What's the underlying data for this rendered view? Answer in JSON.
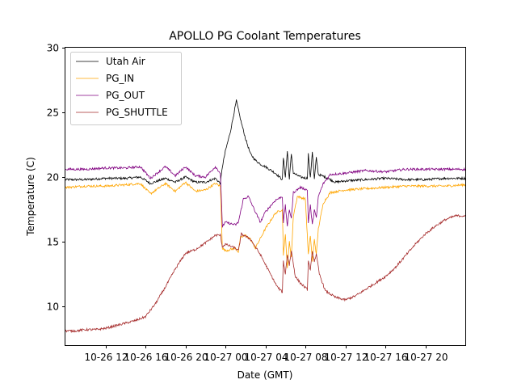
{
  "chart_data": {
    "type": "line",
    "title": "APOLLO PG Coolant Temperatures",
    "xlabel": "Date (GMT)",
    "ylabel": "Temperature (C)",
    "x_units": "hours since 10-26 08:00 GMT",
    "xlim": [
      0,
      40
    ],
    "ylim": [
      7,
      30
    ],
    "x_ticks": [
      {
        "value": 4,
        "label": "10-26 12"
      },
      {
        "value": 8,
        "label": "10-26 16"
      },
      {
        "value": 12,
        "label": "10-26 20"
      },
      {
        "value": 16,
        "label": "10-27 00"
      },
      {
        "value": 20,
        "label": "10-27 04"
      },
      {
        "value": 24,
        "label": "10-27 08"
      },
      {
        "value": 28,
        "label": "10-27 12"
      },
      {
        "value": 32,
        "label": "10-27 16"
      },
      {
        "value": 36,
        "label": "10-27 20"
      }
    ],
    "y_ticks": [
      {
        "value": 10,
        "label": "10"
      },
      {
        "value": 15,
        "label": "15"
      },
      {
        "value": 20,
        "label": "20"
      },
      {
        "value": 25,
        "label": "25"
      },
      {
        "value": 30,
        "label": "30"
      }
    ],
    "grid": false,
    "legend_position": "top-left",
    "series": [
      {
        "name": "Utah Air",
        "color": "#000000",
        "x": [
          0,
          2,
          4,
          6,
          7.5,
          8.5,
          10,
          11,
          12,
          13,
          14,
          15,
          15.5,
          15.7,
          16,
          16.5,
          17.1,
          17.5,
          18,
          18.5,
          19,
          19.5,
          20,
          21,
          21.7,
          21.8,
          22.0,
          22.2,
          22.4,
          22.6,
          22.8,
          23.5,
          24.2,
          24.3,
          24.5,
          24.7,
          24.9,
          25.1,
          25.3,
          26,
          27,
          28,
          30,
          32,
          34,
          36,
          38,
          40
        ],
        "y": [
          19.8,
          19.8,
          19.9,
          19.9,
          20.0,
          19.5,
          19.9,
          19.6,
          20.0,
          19.6,
          19.6,
          19.9,
          19.5,
          20.8,
          22.0,
          23.5,
          25.9,
          24.5,
          23.0,
          21.8,
          21.3,
          21.0,
          20.8,
          20.3,
          19.8,
          21.5,
          20.0,
          22.0,
          19.8,
          21.8,
          20.3,
          20.0,
          19.9,
          21.8,
          19.9,
          22.0,
          19.8,
          21.5,
          20.2,
          20.0,
          19.6,
          19.7,
          19.8,
          19.9,
          19.8,
          19.8,
          19.9,
          19.9
        ]
      },
      {
        "name": "PG_IN",
        "color": "#ffa500",
        "x": [
          0,
          2,
          4,
          6,
          7.5,
          8.5,
          10,
          11,
          12,
          13,
          14,
          15,
          15.5,
          15.7,
          16,
          17,
          17.3,
          17.5,
          18,
          18.5,
          19,
          20,
          21,
          21.7,
          21.8,
          22.0,
          22.2,
          22.4,
          22.6,
          22.8,
          23.2,
          24.0,
          24.3,
          24.5,
          24.7,
          24.9,
          25.1,
          25.3,
          25.8,
          26.5,
          28,
          30,
          32,
          34,
          36,
          38,
          40
        ],
        "y": [
          19.2,
          19.3,
          19.3,
          19.4,
          19.5,
          18.7,
          19.5,
          18.9,
          19.6,
          18.9,
          19.0,
          19.5,
          19.3,
          14.5,
          14.3,
          14.5,
          14.2,
          15.3,
          15.5,
          15.2,
          14.5,
          16.0,
          17.2,
          17.5,
          14.0,
          15.5,
          13.0,
          15.0,
          13.8,
          17.0,
          18.5,
          18.3,
          14.0,
          15.5,
          13.5,
          15.2,
          14.0,
          16.0,
          18.0,
          18.8,
          19.0,
          19.1,
          19.2,
          19.3,
          19.3,
          19.3,
          19.4
        ]
      },
      {
        "name": "PG_OUT",
        "color": "#800080",
        "x": [
          0,
          2,
          4,
          6,
          7.5,
          8.5,
          10,
          11,
          12,
          13,
          14,
          15,
          15.5,
          15.7,
          16,
          17,
          17.3,
          17.8,
          18.3,
          19,
          19.5,
          20,
          21,
          21.7,
          21.8,
          22.0,
          22.2,
          22.4,
          22.6,
          22.8,
          23.5,
          24.2,
          24.3,
          24.5,
          24.7,
          24.9,
          25.1,
          25.3,
          25.8,
          26.5,
          28,
          30,
          32,
          34,
          36,
          38,
          40
        ],
        "y": [
          20.6,
          20.6,
          20.7,
          20.7,
          20.8,
          19.9,
          20.8,
          20.1,
          20.8,
          20.1,
          20.0,
          20.8,
          20.3,
          16.2,
          16.5,
          16.3,
          16.5,
          18.3,
          18.5,
          17.3,
          16.5,
          17.3,
          18.2,
          18.5,
          16.5,
          17.8,
          16.2,
          17.5,
          16.8,
          18.8,
          19.2,
          19.0,
          16.5,
          17.8,
          16.3,
          17.5,
          16.8,
          18.5,
          19.5,
          20.2,
          20.3,
          20.5,
          20.4,
          20.6,
          20.6,
          20.6,
          20.6
        ]
      },
      {
        "name": "PG_SHUTTLE",
        "color": "#a52a2a",
        "x": [
          0,
          1,
          2,
          3,
          4,
          5,
          6,
          7,
          8,
          9,
          10,
          11,
          12,
          13,
          14,
          15,
          15.5,
          15.7,
          16,
          17,
          17.3,
          17.6,
          18.5,
          19.5,
          20.5,
          21.2,
          21.7,
          21.8,
          22.0,
          22.2,
          22.4,
          22.6,
          23.0,
          23.5,
          24.2,
          24.3,
          24.5,
          24.7,
          24.9,
          25.1,
          25.4,
          26,
          27,
          28,
          29,
          30,
          31,
          32,
          33,
          34,
          35,
          36,
          37,
          38,
          39,
          40
        ],
        "y": [
          8.1,
          8.1,
          8.2,
          8.2,
          8.3,
          8.5,
          8.7,
          8.9,
          9.2,
          10.2,
          11.5,
          12.9,
          14.1,
          14.4,
          14.9,
          15.5,
          15.5,
          14.6,
          14.8,
          14.5,
          14.3,
          15.6,
          15.2,
          14.0,
          12.5,
          11.5,
          11.1,
          13.5,
          12.5,
          14.0,
          13.2,
          14.3,
          12.3,
          11.8,
          11.3,
          13.5,
          12.8,
          14.2,
          13.5,
          14.0,
          12.5,
          11.2,
          10.7,
          10.5,
          10.8,
          11.3,
          11.8,
          12.3,
          13.0,
          13.9,
          14.8,
          15.6,
          16.2,
          16.7,
          17.0,
          17.0
        ]
      }
    ]
  }
}
